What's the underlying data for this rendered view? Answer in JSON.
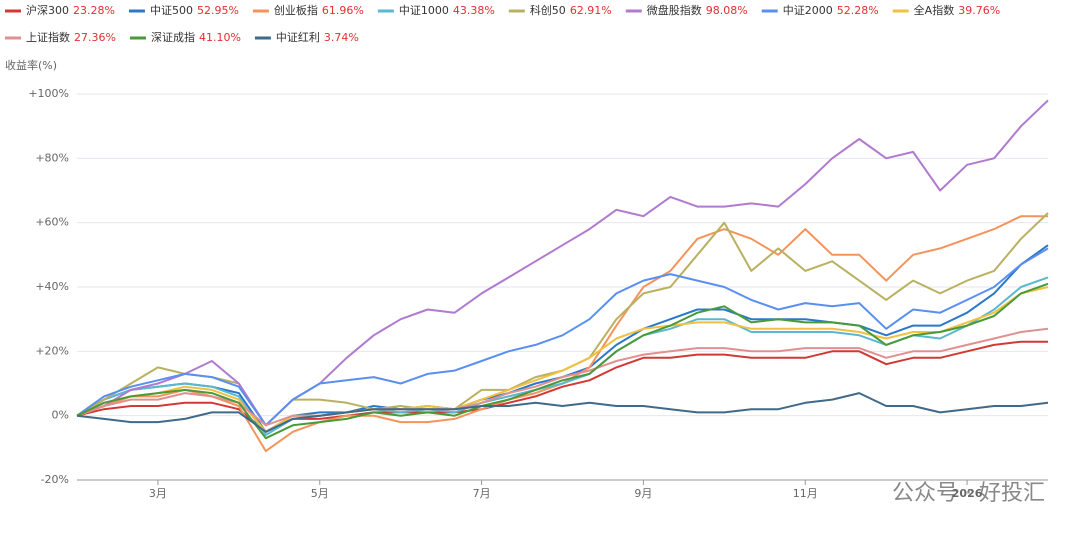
{
  "chart_data": {
    "type": "line",
    "y_label": "收益率(%)",
    "annotation": "公众号 · 好投汇",
    "categories": [
      null,
      null,
      null,
      "3月",
      null,
      null,
      null,
      null,
      null,
      "5月",
      null,
      null,
      null,
      null,
      null,
      "7月",
      null,
      null,
      null,
      null,
      null,
      "9月",
      null,
      null,
      null,
      null,
      null,
      "11月",
      null,
      null,
      null,
      null,
      null,
      "2026",
      null,
      null,
      null
    ],
    "ylim": [
      -20,
      100
    ],
    "yticks": [
      {
        "value": -20,
        "label": "-20%"
      },
      {
        "value": 0,
        "label": "0%"
      },
      {
        "value": 20,
        "label": "+20%"
      },
      {
        "value": 40,
        "label": "+40%"
      },
      {
        "value": 60,
        "label": "+60%"
      },
      {
        "value": 80,
        "label": "+80%"
      },
      {
        "value": 100,
        "label": "+100%"
      }
    ],
    "grid": true,
    "series": [
      {
        "name": "沪深300",
        "color": "#d03a35",
        "return": {
          "value": 23.28,
          "label": "23.28%"
        },
        "values": [
          0,
          2,
          3,
          3,
          4,
          4,
          2,
          -5,
          -1,
          -1,
          0,
          1,
          1,
          1,
          1,
          2,
          4,
          6,
          9,
          11,
          15,
          18,
          18,
          19,
          19,
          18,
          18,
          18,
          20,
          20,
          16,
          18,
          18,
          20,
          22,
          23,
          23
        ]
      },
      {
        "name": "中证500",
        "color": "#2a78c8",
        "return": {
          "value": 52.95,
          "label": "52.95%"
        },
        "values": [
          0,
          5,
          8,
          9,
          10,
          9,
          7,
          -5,
          0,
          1,
          1,
          3,
          2,
          3,
          2,
          5,
          7,
          10,
          12,
          15,
          22,
          27,
          30,
          33,
          33,
          30,
          30,
          30,
          29,
          28,
          25,
          28,
          28,
          32,
          38,
          47,
          53
        ]
      },
      {
        "name": "创业板指",
        "color": "#f4945a",
        "return": {
          "value": 61.96,
          "label": "61.96%"
        },
        "values": [
          0,
          3,
          6,
          6,
          8,
          6,
          3,
          -11,
          -5,
          -2,
          0,
          0,
          -2,
          -2,
          -1,
          2,
          5,
          7,
          10,
          15,
          28,
          40,
          45,
          55,
          58,
          55,
          50,
          58,
          50,
          50,
          42,
          50,
          52,
          55,
          58,
          62,
          62
        ]
      },
      {
        "name": "中证1000",
        "color": "#5ab8d0",
        "return": {
          "value": 43.38,
          "label": "43.38%"
        },
        "values": [
          0,
          5,
          8,
          9,
          10,
          9,
          6,
          -6,
          -1,
          0,
          1,
          2,
          1,
          2,
          1,
          4,
          6,
          8,
          10,
          13,
          20,
          25,
          27,
          30,
          30,
          26,
          26,
          26,
          26,
          25,
          22,
          25,
          24,
          28,
          33,
          40,
          43
        ]
      },
      {
        "name": "科创50",
        "color": "#b9b060",
        "return": {
          "value": 62.91,
          "label": "62.91%"
        },
        "values": [
          0,
          5,
          10,
          15,
          13,
          12,
          10,
          -3,
          5,
          5,
          4,
          2,
          3,
          2,
          2,
          8,
          8,
          12,
          14,
          18,
          30,
          38,
          40,
          50,
          60,
          45,
          52,
          45,
          48,
          42,
          36,
          42,
          38,
          42,
          45,
          55,
          63
        ]
      },
      {
        "name": "微盘股指数",
        "color": "#b07ad0",
        "return": {
          "value": 98.08,
          "label": "98.08%"
        },
        "values": [
          0,
          3,
          8,
          10,
          13,
          17,
          10,
          -3,
          5,
          10,
          18,
          25,
          30,
          33,
          32,
          38,
          43,
          48,
          53,
          58,
          64,
          62,
          68,
          65,
          65,
          66,
          65,
          72,
          80,
          86,
          80,
          82,
          70,
          78,
          80,
          90,
          98
        ]
      },
      {
        "name": "中证2000",
        "color": "#5a8ff0",
        "return": {
          "value": 52.28,
          "label": "52.28%"
        },
        "values": [
          0,
          6,
          9,
          11,
          13,
          12,
          9,
          -3,
          5,
          10,
          11,
          12,
          10,
          13,
          14,
          17,
          20,
          22,
          25,
          30,
          38,
          42,
          44,
          42,
          40,
          36,
          33,
          35,
          34,
          35,
          27,
          33,
          32,
          36,
          40,
          47,
          52
        ]
      },
      {
        "name": "全A指数",
        "color": "#f0c040",
        "return": {
          "value": 39.76,
          "label": "39.76%"
        },
        "values": [
          0,
          4,
          6,
          7,
          9,
          8,
          5,
          -5,
          0,
          0,
          1,
          2,
          2,
          3,
          2,
          5,
          8,
          11,
          14,
          18,
          24,
          27,
          28,
          29,
          29,
          27,
          27,
          27,
          27,
          26,
          24,
          26,
          26,
          29,
          32,
          38,
          40
        ]
      },
      {
        "name": "上证指数",
        "color": "#e09090",
        "return": {
          "value": 27.36,
          "label": "27.36%"
        },
        "values": [
          0,
          3,
          5,
          5,
          7,
          6,
          4,
          -3,
          0,
          0,
          1,
          2,
          2,
          2,
          2,
          4,
          7,
          9,
          12,
          14,
          17,
          19,
          20,
          21,
          21,
          20,
          20,
          21,
          21,
          21,
          18,
          20,
          20,
          22,
          24,
          26,
          27
        ]
      },
      {
        "name": "深证成指",
        "color": "#4a9a3a",
        "return": {
          "value": 41.1,
          "label": "41.10%"
        },
        "values": [
          0,
          4,
          6,
          7,
          8,
          7,
          4,
          -7,
          -3,
          -2,
          -1,
          1,
          0,
          1,
          0,
          3,
          5,
          8,
          11,
          13,
          20,
          25,
          28,
          32,
          34,
          29,
          30,
          29,
          29,
          28,
          22,
          25,
          26,
          28,
          31,
          38,
          41
        ]
      },
      {
        "name": "中证红利",
        "color": "#3f6a8a",
        "return": {
          "value": 3.74,
          "label": "3.74%"
        },
        "values": [
          0,
          -1,
          -2,
          -2,
          -1,
          1,
          1,
          -5,
          -1,
          0,
          1,
          2,
          2,
          2,
          2,
          3,
          3,
          4,
          3,
          4,
          3,
          3,
          2,
          1,
          1,
          2,
          2,
          4,
          5,
          7,
          3,
          3,
          1,
          2,
          3,
          3,
          4
        ]
      }
    ]
  }
}
